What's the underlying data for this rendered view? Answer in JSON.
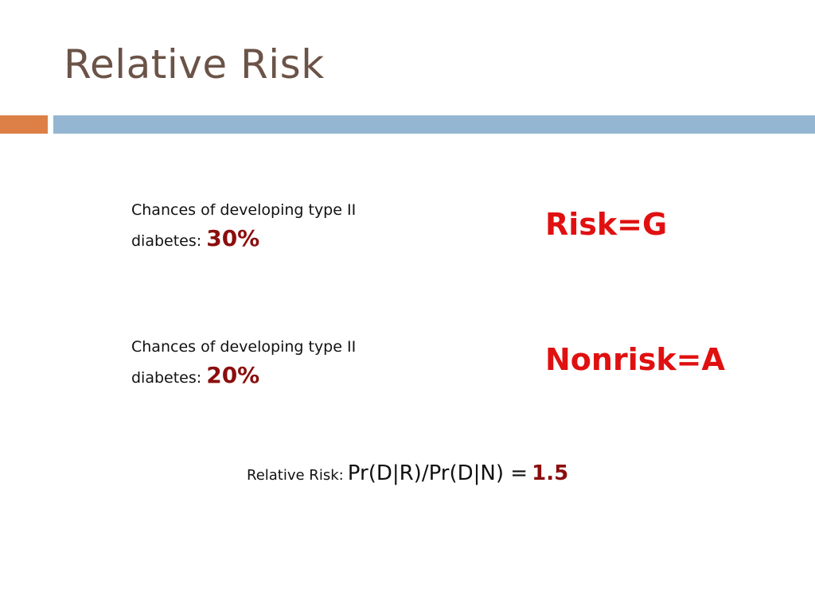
{
  "title": "Relative Risk",
  "group_risk": {
    "line1": "Chances of developing type II",
    "line2": "diabetes:",
    "value": "30%",
    "label": "Risk=G"
  },
  "group_nonrisk": {
    "line1": "Chances of developing type II",
    "line2": "diabetes:",
    "value": "20%",
    "label": "Nonrisk=A"
  },
  "relative_risk": {
    "label": "Relative Risk:",
    "formula": "Pr(D|R)/Pr(D|N) =",
    "value": "1.5"
  },
  "colors": {
    "title": "#6b5347",
    "accent_orange": "#dd8047",
    "accent_blue": "#94b6d2",
    "highlight_red": "#e01010",
    "value_darkred": "#8b0d0d"
  }
}
